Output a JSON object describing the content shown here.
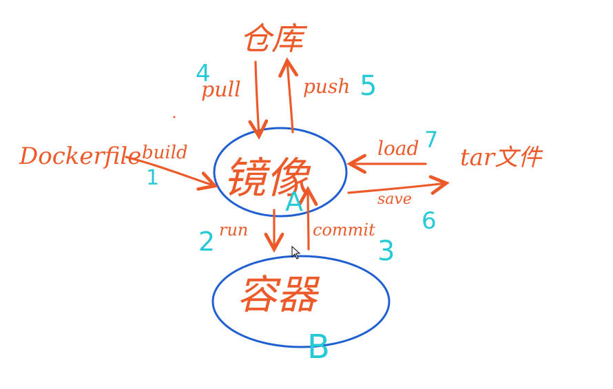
{
  "nodes": {
    "repo": "仓库",
    "image": "镜像",
    "container": "容器",
    "dockerfile": "Dockerfile",
    "tar": "tar文件"
  },
  "edges": {
    "pull": "pull",
    "push": "push",
    "build": "build",
    "run": "run",
    "commit": "commit",
    "load": "load",
    "save": "save"
  },
  "steps": {
    "build": "1",
    "run": "2",
    "commit": "3",
    "pull": "4",
    "push": "5",
    "save": "6",
    "load": "7"
  },
  "markers": {
    "image": "A",
    "container": "B"
  },
  "colors": {
    "text": "#ec5a2a",
    "ellipse": "#1f5fd1",
    "annotation": "#27c9d6"
  }
}
